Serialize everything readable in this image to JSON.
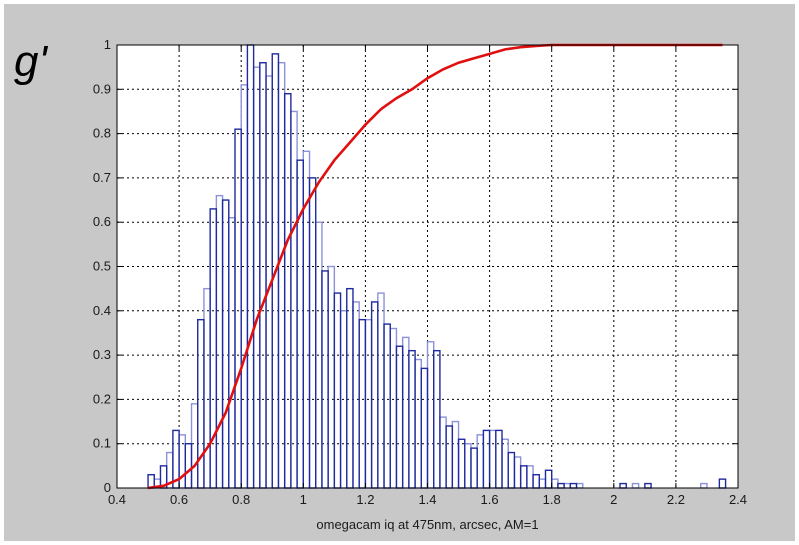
{
  "band_label": "g'",
  "chart_data": {
    "type": "bar",
    "title": "",
    "xlabel": "omegacam iq at 475nm, arcsec, AM=1",
    "ylabel": "",
    "xlim": [
      0.4,
      2.4
    ],
    "ylim": [
      0,
      1
    ],
    "grid": true,
    "xticks": [
      "0.4",
      "0.6",
      "0.8",
      "1",
      "1.2",
      "1.4",
      "1.6",
      "1.8",
      "2",
      "2.2",
      "2.4"
    ],
    "yticks": [
      "0",
      "0.1",
      "0.2",
      "0.3",
      "0.4",
      "0.5",
      "0.6",
      "0.7",
      "0.8",
      "0.9",
      "1"
    ],
    "colors": {
      "histogram_dark": "#1f2a9e",
      "histogram_light": "#8c92d8",
      "cumulative": "#e01010",
      "frame_bg": "#c8c8c8",
      "plot_bg": "#ffffff"
    },
    "series": [
      {
        "type": "histogram",
        "bin_width": 0.02,
        "bins_dark": [
          [
            0.5,
            0.03
          ],
          [
            0.54,
            0.05
          ],
          [
            0.58,
            0.13
          ],
          [
            0.62,
            0.1
          ],
          [
            0.66,
            0.38
          ],
          [
            0.7,
            0.63
          ],
          [
            0.74,
            0.65
          ],
          [
            0.78,
            0.81
          ],
          [
            0.82,
            1.0
          ],
          [
            0.86,
            0.96
          ],
          [
            0.9,
            0.98
          ],
          [
            0.94,
            0.89
          ],
          [
            0.98,
            0.74
          ],
          [
            1.02,
            0.7
          ],
          [
            1.06,
            0.49
          ],
          [
            1.1,
            0.44
          ],
          [
            1.14,
            0.45
          ],
          [
            1.18,
            0.38
          ],
          [
            1.22,
            0.42
          ],
          [
            1.26,
            0.37
          ],
          [
            1.3,
            0.32
          ],
          [
            1.34,
            0.31
          ],
          [
            1.38,
            0.27
          ],
          [
            1.42,
            0.31
          ],
          [
            1.46,
            0.14
          ],
          [
            1.5,
            0.11
          ],
          [
            1.54,
            0.09
          ],
          [
            1.58,
            0.13
          ],
          [
            1.62,
            0.13
          ],
          [
            1.66,
            0.08
          ],
          [
            1.7,
            0.05
          ],
          [
            1.74,
            0.03
          ],
          [
            1.78,
            0.04
          ],
          [
            1.82,
            0.01
          ],
          [
            1.86,
            0.01
          ],
          [
            2.02,
            0.01
          ],
          [
            2.1,
            0.01
          ],
          [
            2.34,
            0.02
          ]
        ],
        "bins_light": [
          [
            0.52,
            0.02
          ],
          [
            0.56,
            0.08
          ],
          [
            0.6,
            0.12
          ],
          [
            0.64,
            0.19
          ],
          [
            0.68,
            0.45
          ],
          [
            0.72,
            0.66
          ],
          [
            0.76,
            0.61
          ],
          [
            0.8,
            0.91
          ],
          [
            0.84,
            0.95
          ],
          [
            0.88,
            0.93
          ],
          [
            0.92,
            0.96
          ],
          [
            0.96,
            0.85
          ],
          [
            1.0,
            0.76
          ],
          [
            1.04,
            0.6
          ],
          [
            1.08,
            0.5
          ],
          [
            1.12,
            0.4
          ],
          [
            1.16,
            0.42
          ],
          [
            1.2,
            0.38
          ],
          [
            1.24,
            0.44
          ],
          [
            1.28,
            0.36
          ],
          [
            1.32,
            0.34
          ],
          [
            1.36,
            0.29
          ],
          [
            1.4,
            0.33
          ],
          [
            1.44,
            0.16
          ],
          [
            1.48,
            0.15
          ],
          [
            1.52,
            0.1
          ],
          [
            1.56,
            0.12
          ],
          [
            1.6,
            0.13
          ],
          [
            1.64,
            0.11
          ],
          [
            1.68,
            0.07
          ],
          [
            1.72,
            0.05
          ],
          [
            1.76,
            0.02
          ],
          [
            1.8,
            0.02
          ],
          [
            1.84,
            0.01
          ],
          [
            1.88,
            0.01
          ],
          [
            2.06,
            0.01
          ],
          [
            2.28,
            0.01
          ]
        ]
      },
      {
        "type": "line",
        "x": [
          0.5,
          0.55,
          0.6,
          0.65,
          0.7,
          0.75,
          0.8,
          0.85,
          0.9,
          0.95,
          1.0,
          1.05,
          1.1,
          1.15,
          1.2,
          1.25,
          1.3,
          1.35,
          1.4,
          1.45,
          1.5,
          1.55,
          1.6,
          1.65,
          1.7,
          1.75,
          1.8,
          1.9,
          2.0,
          2.1,
          2.2,
          2.3,
          2.35
        ],
        "y": [
          0.0,
          0.005,
          0.02,
          0.05,
          0.1,
          0.17,
          0.27,
          0.38,
          0.47,
          0.56,
          0.63,
          0.69,
          0.74,
          0.78,
          0.82,
          0.855,
          0.88,
          0.9,
          0.925,
          0.945,
          0.96,
          0.97,
          0.98,
          0.99,
          0.995,
          0.998,
          1.0,
          1.0,
          1.0,
          1.0,
          1.0,
          1.0,
          1.0
        ]
      }
    ]
  }
}
